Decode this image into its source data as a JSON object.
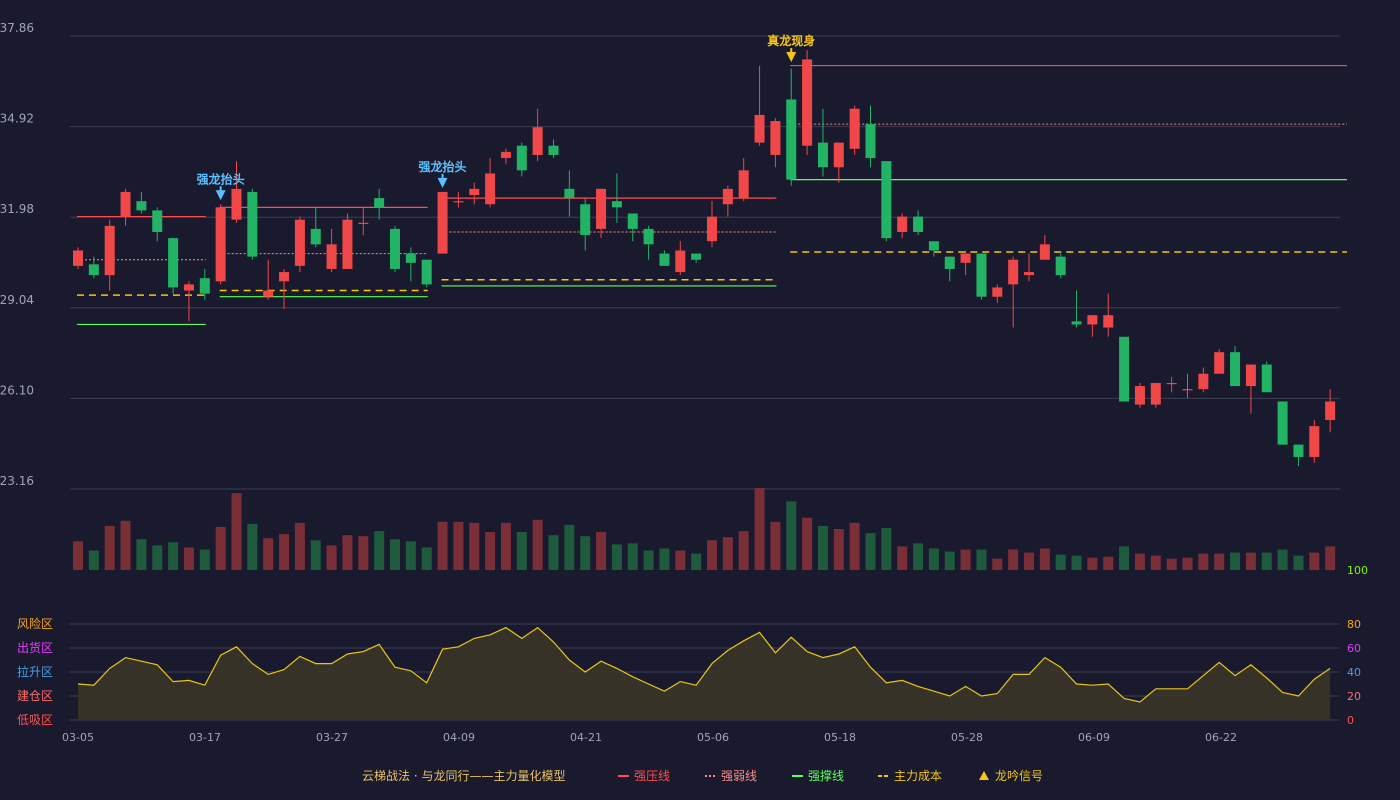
{
  "chart_data": {
    "type": "candlestick",
    "price_axis": {
      "ticks": [
        "37.86",
        "34.92",
        "31.98",
        "29.04",
        "26.10",
        "23.16"
      ],
      "range": [
        23.16,
        37.86
      ]
    },
    "date_ticks": [
      "03-05",
      "03-17",
      "03-27",
      "04-09",
      "04-21",
      "05-06",
      "05-18",
      "05-28",
      "06-09",
      "06-22"
    ],
    "candles": [
      [
        30.4,
        30.9,
        30.3,
        31.0
      ],
      [
        30.45,
        30.1,
        30.0,
        30.7
      ],
      [
        30.1,
        31.7,
        29.6,
        31.9
      ],
      [
        32.0,
        32.8,
        31.7,
        32.9
      ],
      [
        32.5,
        32.2,
        32.1,
        32.8
      ],
      [
        32.2,
        31.5,
        31.2,
        32.3
      ],
      [
        31.3,
        29.7,
        29.5,
        31.3
      ],
      [
        29.6,
        29.8,
        28.6,
        29.9
      ],
      [
        30.0,
        29.5,
        29.3,
        30.3
      ],
      [
        29.9,
        32.3,
        29.8,
        32.4
      ],
      [
        31.9,
        32.9,
        31.8,
        33.8
      ],
      [
        32.8,
        30.7,
        30.6,
        32.9
      ],
      [
        29.4,
        29.6,
        29.3,
        30.6
      ],
      [
        29.9,
        30.2,
        29.0,
        30.3
      ],
      [
        30.4,
        31.9,
        30.2,
        32.0
      ],
      [
        31.6,
        31.1,
        31.0,
        32.3
      ],
      [
        30.3,
        31.1,
        30.2,
        31.6
      ],
      [
        30.3,
        31.9,
        30.3,
        32.1
      ],
      [
        31.8,
        31.8,
        31.4,
        32.3
      ],
      [
        32.6,
        32.3,
        31.9,
        32.9
      ],
      [
        31.6,
        30.3,
        30.2,
        31.7
      ],
      [
        30.8,
        30.5,
        29.9,
        31.0
      ],
      [
        30.6,
        29.8,
        29.7,
        30.6
      ],
      [
        30.8,
        32.8,
        30.8,
        32.8
      ],
      [
        32.5,
        32.5,
        32.3,
        32.8
      ],
      [
        32.7,
        32.9,
        32.4,
        33.1
      ],
      [
        32.4,
        33.4,
        32.3,
        33.9
      ],
      [
        33.9,
        34.1,
        33.7,
        34.2
      ],
      [
        34.3,
        33.5,
        33.3,
        34.4
      ],
      [
        34.0,
        34.9,
        33.8,
        35.5
      ],
      [
        34.3,
        34.0,
        33.9,
        34.5
      ],
      [
        32.9,
        32.6,
        32.0,
        33.5
      ],
      [
        32.4,
        31.4,
        30.9,
        32.6
      ],
      [
        31.6,
        32.9,
        31.3,
        32.9
      ],
      [
        32.5,
        32.3,
        31.8,
        33.4
      ],
      [
        32.1,
        31.6,
        31.2,
        32.1
      ],
      [
        31.6,
        31.1,
        30.6,
        31.7
      ],
      [
        30.8,
        30.4,
        30.4,
        30.9
      ],
      [
        30.2,
        30.9,
        30.1,
        31.2
      ],
      [
        30.8,
        30.6,
        30.5,
        30.8
      ],
      [
        31.2,
        32.0,
        31.0,
        32.5
      ],
      [
        32.4,
        32.9,
        32.0,
        33.0
      ],
      [
        32.6,
        33.5,
        32.5,
        33.9
      ],
      [
        34.4,
        35.3,
        34.3,
        36.9
      ],
      [
        34.0,
        35.1,
        33.6,
        35.2
      ],
      [
        35.8,
        33.2,
        33.0,
        36.8
      ],
      [
        34.3,
        37.1,
        34.0,
        37.4
      ],
      [
        34.4,
        33.6,
        33.3,
        35.5
      ],
      [
        33.6,
        34.4,
        33.1,
        34.4
      ],
      [
        34.2,
        35.5,
        34.0,
        35.6
      ],
      [
        35.0,
        33.9,
        33.6,
        35.6
      ],
      [
        33.8,
        31.3,
        31.2,
        33.8
      ],
      [
        31.5,
        32.0,
        31.3,
        32.1
      ],
      [
        32.0,
        31.5,
        31.4,
        32.2
      ],
      [
        31.2,
        30.9,
        30.7,
        31.2
      ],
      [
        30.7,
        30.3,
        29.9,
        30.7
      ],
      [
        30.5,
        30.8,
        30.1,
        30.9
      ],
      [
        30.8,
        29.4,
        29.3,
        30.8
      ],
      [
        29.4,
        29.7,
        29.2,
        29.8
      ],
      [
        29.8,
        30.6,
        28.4,
        30.7
      ],
      [
        30.1,
        30.2,
        29.9,
        30.8
      ],
      [
        30.6,
        31.1,
        30.6,
        31.4
      ],
      [
        30.7,
        30.1,
        30.0,
        30.8
      ],
      [
        28.6,
        28.5,
        28.4,
        29.6
      ],
      [
        28.5,
        28.8,
        28.1,
        28.8
      ],
      [
        28.4,
        28.8,
        28.1,
        29.5
      ],
      [
        28.1,
        26.0,
        26.0,
        28.1
      ],
      [
        25.9,
        26.5,
        25.8,
        26.6
      ],
      [
        25.9,
        26.6,
        25.8,
        26.6
      ],
      [
        26.6,
        26.6,
        26.3,
        26.8
      ],
      [
        26.4,
        26.4,
        26.1,
        26.9
      ],
      [
        26.4,
        26.9,
        26.3,
        27.1
      ],
      [
        26.9,
        27.6,
        26.9,
        27.7
      ],
      [
        27.6,
        26.5,
        26.5,
        27.8
      ],
      [
        26.5,
        27.2,
        25.6,
        27.2
      ],
      [
        27.2,
        26.3,
        26.3,
        27.3
      ],
      [
        26.0,
        24.6,
        24.6,
        26.0
      ],
      [
        24.6,
        24.2,
        23.9,
        24.6
      ],
      [
        24.2,
        25.2,
        24.0,
        25.4
      ],
      [
        25.4,
        26.0,
        25.0,
        26.4
      ]
    ],
    "volumes": [
      28,
      19,
      43,
      48,
      30,
      24,
      27,
      22,
      20,
      42,
      75,
      45,
      31,
      35,
      46,
      29,
      24,
      34,
      33,
      38,
      30,
      28,
      22,
      47,
      47,
      46,
      37,
      46,
      37,
      49,
      34,
      44,
      33,
      37,
      25,
      26,
      19,
      21,
      19,
      16,
      29,
      32,
      38,
      80,
      47,
      67,
      51,
      43,
      40,
      46,
      36,
      41,
      23,
      26,
      21,
      18,
      20,
      20,
      11,
      20,
      17,
      21,
      15,
      14,
      12,
      13,
      23,
      16,
      14,
      11,
      12,
      16,
      16,
      17,
      17,
      17,
      20,
      14,
      17,
      23
    ],
    "levels": [
      {
        "type": "resist",
        "value": 32.0,
        "from": 0,
        "to": 8
      },
      {
        "type": "weak",
        "value": 30.6,
        "from": 0,
        "to": 8
      },
      {
        "type": "cost",
        "value": 29.45,
        "from": 0,
        "to": 8
      },
      {
        "type": "support",
        "value": 28.5,
        "from": 0,
        "to": 8
      },
      {
        "type": "resist",
        "value": 32.3,
        "from": 9,
        "to": 22
      },
      {
        "type": "weak",
        "value": 30.8,
        "from": 9,
        "to": 22
      },
      {
        "type": "cost",
        "value": 29.6,
        "from": 9,
        "to": 22
      },
      {
        "type": "support",
        "value": 29.4,
        "from": 9,
        "to": 22
      },
      {
        "type": "resist",
        "value": 32.6,
        "from": 23,
        "to": 44
      },
      {
        "type": "weak",
        "value": 31.5,
        "from": 23,
        "to": 44
      },
      {
        "type": "cost",
        "value": 29.95,
        "from": 23,
        "to": 44
      },
      {
        "type": "support",
        "value": 29.75,
        "from": 23,
        "to": 44
      },
      {
        "type": "resist",
        "value": 36.9,
        "from": 45,
        "to": 80
      },
      {
        "type": "weak",
        "value": 35.0,
        "from": 45,
        "to": 80
      },
      {
        "type": "support",
        "value": 33.2,
        "from": 45,
        "to": 80
      },
      {
        "type": "cost",
        "value": 30.85,
        "from": 45,
        "to": 80
      }
    ],
    "signals": [
      {
        "index": 9,
        "label": "强龙抬头",
        "kind": "blue"
      },
      {
        "index": 23,
        "label": "强龙抬头",
        "kind": "blue"
      },
      {
        "index": 45,
        "label": "真龙现身",
        "kind": "gold"
      }
    ],
    "indicator": {
      "values": [
        30,
        29,
        43,
        52,
        49,
        46,
        32,
        33,
        29,
        54,
        61,
        47,
        38,
        42,
        53,
        47,
        47,
        55,
        57,
        63,
        44,
        41,
        31,
        59,
        61,
        68,
        71,
        77,
        68,
        77,
        65,
        50,
        40,
        49,
        43,
        36,
        30,
        24,
        32,
        29,
        47,
        58,
        66,
        73,
        56,
        69,
        57,
        52,
        55,
        61,
        44,
        31,
        33,
        28,
        24,
        20,
        28,
        20,
        22,
        38,
        38,
        52,
        44,
        30,
        29,
        30,
        18,
        15,
        26,
        26,
        26,
        37,
        48,
        37,
        46,
        35,
        23,
        20,
        34,
        43
      ],
      "zones": [
        {
          "label": "风险区",
          "color": "#f5a623"
        },
        {
          "label": "出货区",
          "color": "#e040fb"
        },
        {
          "label": "拉升区",
          "color": "#4d9de0"
        },
        {
          "label": "建仓区",
          "color": "#ff6b6b"
        },
        {
          "label": "低吸区",
          "color": "#ff5252"
        }
      ],
      "right_ticks": [
        {
          "label": "100",
          "color": "#7cfc00"
        },
        {
          "label": "80",
          "color": "#f5a623"
        },
        {
          "label": "60",
          "color": "#e040fb"
        },
        {
          "label": "40",
          "color": "#4d9de0"
        },
        {
          "label": "20",
          "color": "#ff6b6b"
        },
        {
          "label": "0",
          "color": "#ff5252"
        }
      ],
      "range": [
        0,
        100
      ]
    },
    "legend": [
      {
        "label": "云梯战法 · 与龙同行——主力量化模型",
        "style": "text",
        "color": "#e8c268"
      },
      {
        "label": "强压线",
        "style": "solid",
        "color": "#ff4d4f"
      },
      {
        "label": "强弱线",
        "style": "dotted",
        "color": "#ff8a8a"
      },
      {
        "label": "强撑线",
        "style": "solid",
        "color": "#5dff5d"
      },
      {
        "label": "主力成本",
        "style": "dashed",
        "color": "#f5c518"
      },
      {
        "label": "龙吟信号",
        "style": "triangle",
        "color": "#f5c518"
      }
    ],
    "colors": {
      "up": "#f04848",
      "down": "#22b365",
      "vol_up": "#7a2e35",
      "vol_down": "#1e5a3c",
      "resist": "#ff4d4f",
      "weak": "#ff8a8a",
      "support": "#5dff5d",
      "cost": "#f5c518",
      "signal_blue": "#5bc0ff",
      "signal_gold": "#f5c518",
      "indicator_line": "#e8c51c",
      "indicator_fill": "#3a3527",
      "grid": "#3c3f54",
      "axis_text": "#a0a4b8"
    }
  }
}
